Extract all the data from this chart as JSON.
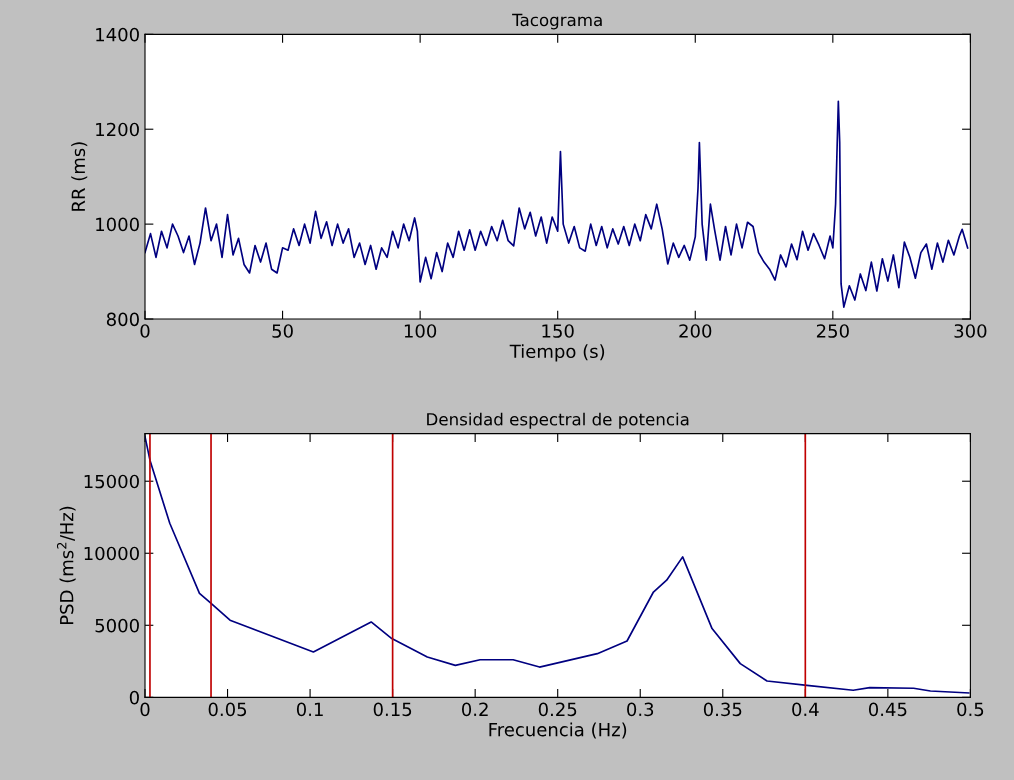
{
  "chart_data": [
    {
      "type": "line",
      "title": "Tacograma",
      "xlabel": "Tiempo (s)",
      "ylabel": "RR (ms)",
      "xlim": [
        0,
        300
      ],
      "ylim": [
        800,
        1400
      ],
      "xticks": [
        0,
        50,
        100,
        150,
        200,
        250,
        300
      ],
      "yticks": [
        800,
        1000,
        1200,
        1400
      ],
      "grid": false,
      "legend": false,
      "series": [
        {
          "color": "#000080",
          "x": [
            0,
            2,
            4,
            6,
            8,
            10,
            12,
            14,
            16,
            18,
            20,
            22,
            24,
            26,
            28,
            30,
            32,
            34,
            36,
            38,
            40,
            42,
            44,
            46,
            48,
            50,
            52,
            54,
            56,
            58,
            60,
            62,
            64,
            66,
            68,
            70,
            72,
            74,
            76,
            78,
            80,
            82,
            84,
            86,
            88,
            90,
            92,
            94,
            96,
            98,
            99,
            100,
            102,
            104,
            106,
            108,
            110,
            112,
            114,
            116,
            118,
            120,
            122,
            124,
            126,
            128,
            130,
            132,
            134,
            136,
            138,
            140,
            142,
            144,
            146,
            148,
            150,
            151,
            152,
            154,
            156,
            158,
            160,
            162,
            164,
            166,
            168,
            170,
            172,
            174,
            176,
            178,
            180,
            182,
            184,
            186,
            188,
            190,
            192,
            194,
            196,
            198,
            200,
            201,
            201.5,
            202.5,
            204,
            205.5,
            207,
            209,
            211,
            213,
            215,
            217,
            219,
            221,
            223,
            225,
            227,
            229,
            231,
            233,
            235,
            237,
            239,
            241,
            243,
            245,
            247,
            249,
            250,
            251,
            252,
            252.5,
            253,
            254,
            256,
            258,
            260,
            262,
            264,
            266,
            268,
            270,
            272,
            274,
            276,
            278,
            280,
            282,
            284,
            286,
            288,
            290,
            292,
            294,
            296,
            297,
            299
          ],
          "values": [
            940,
            980,
            930,
            985,
            950,
            1000,
            975,
            940,
            975,
            915,
            960,
            1034,
            965,
            1000,
            930,
            1020,
            935,
            970,
            915,
            897,
            955,
            920,
            960,
            905,
            897,
            950,
            945,
            990,
            955,
            1000,
            960,
            1027,
            970,
            1005,
            955,
            1000,
            960,
            990,
            930,
            960,
            915,
            955,
            905,
            950,
            930,
            985,
            950,
            1000,
            965,
            1013,
            985,
            878,
            930,
            885,
            940,
            900,
            960,
            930,
            985,
            945,
            988,
            945,
            985,
            955,
            995,
            965,
            1008,
            965,
            954,
            1034,
            990,
            1025,
            975,
            1015,
            960,
            1015,
            985,
            1153,
            1000,
            960,
            995,
            950,
            943,
            1000,
            955,
            995,
            950,
            990,
            958,
            995,
            955,
            1000,
            965,
            1020,
            990,
            1042,
            989,
            916,
            960,
            930,
            955,
            924,
            973,
            1076,
            1172,
            1000,
            924,
            1042,
            989,
            924,
            995,
            935,
            1000,
            950,
            1004,
            995,
            940,
            920,
            905,
            882,
            935,
            910,
            958,
            925,
            985,
            945,
            980,
            955,
            927,
            975,
            950,
            1042,
            1259,
            1172,
            874,
            825,
            870,
            840,
            895,
            860,
            920,
            859,
            927,
            880,
            935,
            866,
            962,
            930,
            886,
            940,
            958,
            905,
            960,
            920,
            966,
            935,
            975,
            989,
            950
          ]
        }
      ]
    },
    {
      "type": "line",
      "title": "Densidad espectral de potencia",
      "xlabel": "Frecuencia (Hz)",
      "ylabel": "PSD (ms$^{2}$/Hz)",
      "xlim": [
        0,
        0.5
      ],
      "ylim": [
        0,
        18300
      ],
      "xticks": [
        0,
        0.05,
        0.1,
        0.15,
        0.2,
        0.25,
        0.3,
        0.35,
        0.4,
        0.45,
        0.5
      ],
      "yticks": [
        0,
        5000,
        10000,
        15000
      ],
      "grid": false,
      "legend": false,
      "ref_lines": [
        {
          "axis": "x",
          "value": 0.003,
          "color": "#c00000"
        },
        {
          "axis": "x",
          "value": 0.04,
          "color": "#c00000"
        },
        {
          "axis": "x",
          "value": 0.15,
          "color": "#c00000"
        },
        {
          "axis": "x",
          "value": 0.4,
          "color": "#c00000"
        }
      ],
      "series": [
        {
          "color": "#000080",
          "x": [
            0,
            0.003,
            0.015,
            0.033,
            0.039,
            0.0515,
            0.102,
            0.137,
            0.1495,
            0.171,
            0.188,
            0.203,
            0.223,
            0.239,
            0.274,
            0.292,
            0.308,
            0.316,
            0.3257,
            0.3435,
            0.3606,
            0.3768,
            0.401,
            0.429,
            0.439,
            0.4656,
            0.4758,
            0.499
          ],
          "values": [
            18100,
            16460,
            12080,
            7220,
            6620,
            5350,
            3150,
            5230,
            4080,
            2800,
            2220,
            2610,
            2610,
            2100,
            3030,
            3910,
            7310,
            8130,
            9750,
            4770,
            2340,
            1130,
            830,
            490,
            670,
            630,
            440,
            300
          ]
        }
      ]
    }
  ]
}
